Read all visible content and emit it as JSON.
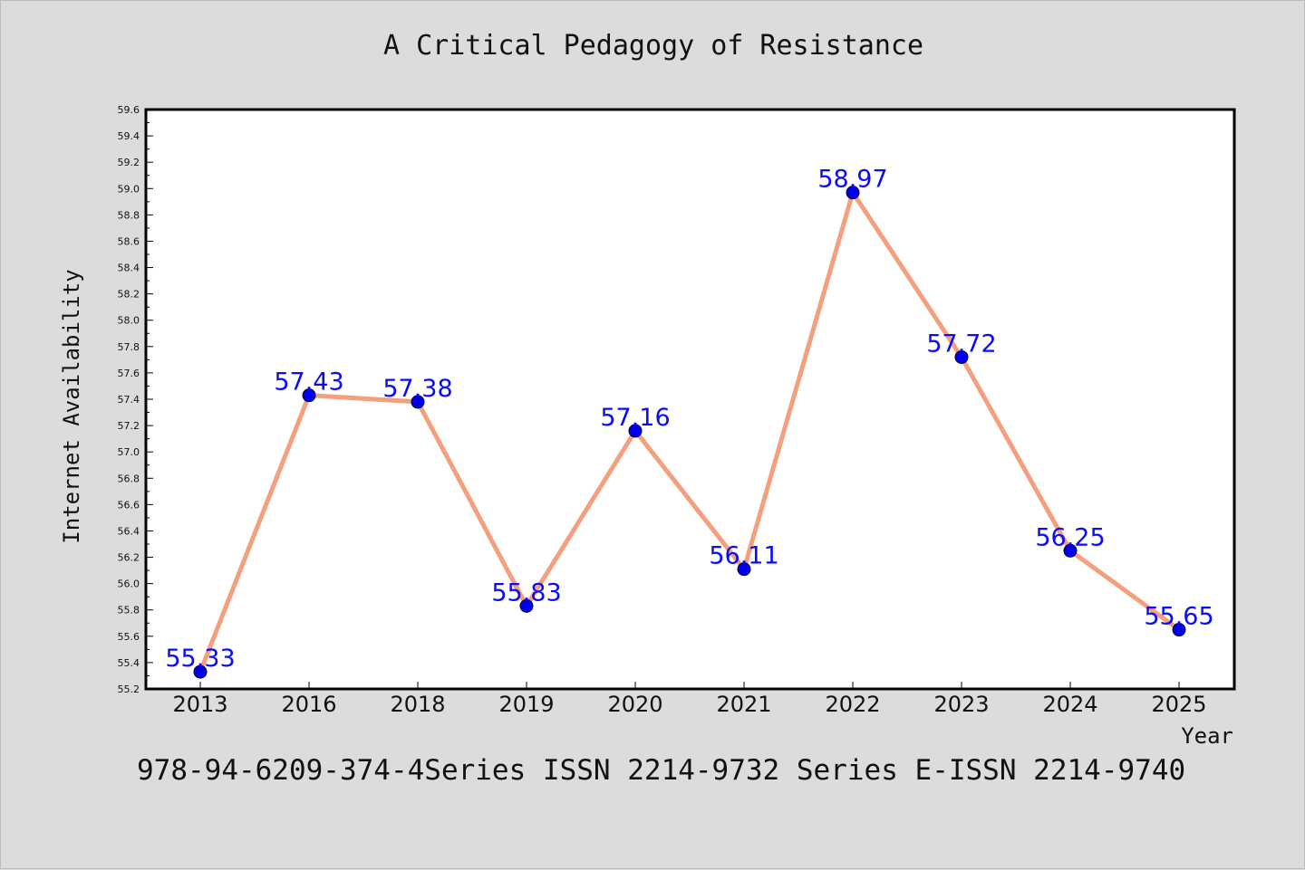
{
  "chart_data": {
    "type": "line",
    "title": "A Critical Pedagogy of Resistance",
    "xlabel": "Year",
    "ylabel": "Internet Availability",
    "categories": [
      "2013",
      "2016",
      "2018",
      "2019",
      "2020",
      "2021",
      "2022",
      "2023",
      "2024",
      "2025"
    ],
    "values": [
      55.33,
      57.43,
      57.38,
      55.83,
      57.16,
      56.11,
      58.97,
      57.72,
      56.25,
      55.65
    ],
    "data_labels": [
      "55.33",
      "57.43",
      "57.38",
      "55.83",
      "57.16",
      "56.11",
      "58.97",
      "57.72",
      "56.25",
      "55.65"
    ],
    "ylim": [
      55.2,
      59.6
    ],
    "yticks": [
      "55.2",
      "55.4",
      "55.6",
      "55.8",
      "56.0",
      "56.2",
      "56.4",
      "56.6",
      "56.8",
      "57.0",
      "57.2",
      "57.4",
      "57.6",
      "57.8",
      "58.0",
      "58.2",
      "58.4",
      "58.6",
      "58.8",
      "59.0",
      "59.2",
      "59.4",
      "59.6"
    ],
    "grid": false,
    "line_color": "#f4a07e",
    "marker_color": "#0000ee",
    "label_color": "#0a0aff"
  },
  "footer": {
    "text": "978-94-6209-374-4Series ISSN 2214-9732 Series E-ISSN 2214-9740"
  }
}
